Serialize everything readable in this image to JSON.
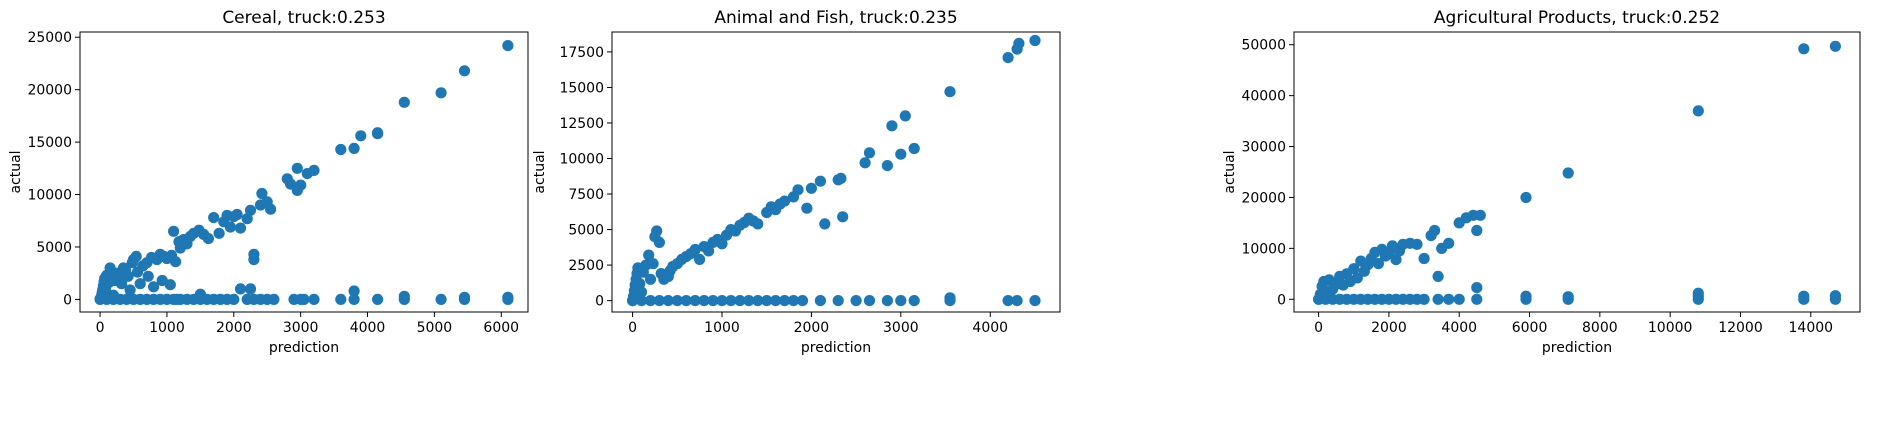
{
  "chart_data": [
    {
      "type": "scatter",
      "title": "Cereal, truck:0.253",
      "xlabel": "prediction",
      "ylabel": "actual",
      "xlim": [
        -300,
        6400
      ],
      "ylim": [
        -1200,
        25500
      ],
      "xticks": [
        0,
        1000,
        2000,
        3000,
        4000,
        5000,
        6000
      ],
      "yticks": [
        0,
        5000,
        10000,
        15000,
        20000,
        25000
      ],
      "color": "#1f77b4",
      "points": [
        [
          0,
          0
        ],
        [
          10,
          120
        ],
        [
          20,
          300
        ],
        [
          30,
          600
        ],
        [
          40,
          900
        ],
        [
          50,
          1300
        ],
        [
          60,
          1700
        ],
        [
          70,
          2000
        ],
        [
          80,
          1000
        ],
        [
          90,
          500
        ],
        [
          100,
          2300
        ],
        [
          120,
          2000
        ],
        [
          130,
          1600
        ],
        [
          150,
          3000
        ],
        [
          170,
          200
        ],
        [
          200,
          400
        ],
        [
          210,
          1800
        ],
        [
          250,
          2500
        ],
        [
          300,
          2200
        ],
        [
          320,
          1500
        ],
        [
          350,
          3000
        ],
        [
          380,
          2800
        ],
        [
          420,
          2200
        ],
        [
          450,
          900
        ],
        [
          480,
          3500
        ],
        [
          500,
          3800
        ],
        [
          540,
          4100
        ],
        [
          560,
          2600
        ],
        [
          600,
          1500
        ],
        [
          640,
          3200
        ],
        [
          700,
          3500
        ],
        [
          720,
          2200
        ],
        [
          770,
          4000
        ],
        [
          800,
          1200
        ],
        [
          850,
          3800
        ],
        [
          900,
          4300
        ],
        [
          930,
          1800
        ],
        [
          950,
          4100
        ],
        [
          1000,
          3900
        ],
        [
          1050,
          1400
        ],
        [
          1070,
          4200
        ],
        [
          1100,
          6500
        ],
        [
          1130,
          3600
        ],
        [
          1180,
          5500
        ],
        [
          1200,
          4900
        ],
        [
          1250,
          5700
        ],
        [
          1300,
          5300
        ],
        [
          1350,
          6000
        ],
        [
          1400,
          6300
        ],
        [
          1480,
          6600
        ],
        [
          1550,
          6200
        ],
        [
          1620,
          5800
        ],
        [
          1700,
          7800
        ],
        [
          1780,
          6300
        ],
        [
          1850,
          7400
        ],
        [
          1900,
          8000
        ],
        [
          1950,
          6900
        ],
        [
          2000,
          7900
        ],
        [
          2050,
          8100
        ],
        [
          2100,
          6800
        ],
        [
          2200,
          7700
        ],
        [
          2250,
          8500
        ],
        [
          2300,
          4300
        ],
        [
          2300,
          3800
        ],
        [
          2400,
          9000
        ],
        [
          2420,
          10100
        ],
        [
          2500,
          9300
        ],
        [
          2550,
          8600
        ],
        [
          2800,
          11500
        ],
        [
          2850,
          11000
        ],
        [
          2950,
          12500
        ],
        [
          2950,
          10400
        ],
        [
          3000,
          10900
        ],
        [
          3100,
          12000
        ],
        [
          3200,
          12300
        ],
        [
          3600,
          14300
        ],
        [
          3800,
          14400
        ],
        [
          3900,
          15600
        ],
        [
          4150,
          15800
        ],
        [
          4150,
          15900
        ],
        [
          4550,
          18800
        ],
        [
          5100,
          19700
        ],
        [
          5450,
          21800
        ],
        [
          6100,
          24200
        ],
        [
          0,
          50
        ],
        [
          100,
          0
        ],
        [
          200,
          0
        ],
        [
          300,
          0
        ],
        [
          400,
          0
        ],
        [
          500,
          0
        ],
        [
          600,
          0
        ],
        [
          700,
          0
        ],
        [
          800,
          0
        ],
        [
          900,
          0
        ],
        [
          1000,
          0
        ],
        [
          1100,
          0
        ],
        [
          1150,
          0
        ],
        [
          1200,
          0
        ],
        [
          1300,
          0
        ],
        [
          1400,
          0
        ],
        [
          1500,
          500
        ],
        [
          1500,
          0
        ],
        [
          1600,
          0
        ],
        [
          1700,
          0
        ],
        [
          1800,
          0
        ],
        [
          1900,
          0
        ],
        [
          2000,
          0
        ],
        [
          2100,
          1000
        ],
        [
          2200,
          0
        ],
        [
          2250,
          1000
        ],
        [
          2300,
          0
        ],
        [
          2400,
          0
        ],
        [
          2500,
          0
        ],
        [
          2600,
          0
        ],
        [
          2900,
          0
        ],
        [
          3000,
          0
        ],
        [
          3050,
          0
        ],
        [
          3200,
          0
        ],
        [
          3600,
          0
        ],
        [
          3800,
          800
        ],
        [
          3800,
          0
        ],
        [
          4150,
          0
        ],
        [
          4550,
          0
        ],
        [
          4550,
          300
        ],
        [
          5100,
          0
        ],
        [
          5450,
          0
        ],
        [
          5450,
          200
        ],
        [
          6100,
          0
        ],
        [
          6100,
          200
        ]
      ]
    },
    {
      "type": "scatter",
      "title": "Animal and Fish, truck:0.235",
      "xlabel": "prediction",
      "ylabel": "actual",
      "xlim": [
        -230,
        4780
      ],
      "ylim": [
        -800,
        18900
      ],
      "xticks": [
        0,
        1000,
        2000,
        3000,
        4000
      ],
      "yticks": [
        0,
        2500,
        5000,
        7500,
        10000,
        12500,
        15000,
        17500
      ],
      "color": "#1f77b4",
      "points": [
        [
          0,
          0
        ],
        [
          10,
          300
        ],
        [
          20,
          700
        ],
        [
          30,
          1100
        ],
        [
          40,
          1500
        ],
        [
          50,
          1900
        ],
        [
          60,
          2300
        ],
        [
          80,
          1200
        ],
        [
          100,
          600
        ],
        [
          120,
          2000
        ],
        [
          150,
          2500
        ],
        [
          180,
          3200
        ],
        [
          200,
          1500
        ],
        [
          230,
          2600
        ],
        [
          250,
          4500
        ],
        [
          270,
          4900
        ],
        [
          300,
          4100
        ],
        [
          320,
          1900
        ],
        [
          350,
          1500
        ],
        [
          400,
          1700
        ],
        [
          420,
          2100
        ],
        [
          450,
          2400
        ],
        [
          500,
          2600
        ],
        [
          550,
          2900
        ],
        [
          600,
          3100
        ],
        [
          650,
          3300
        ],
        [
          700,
          3600
        ],
        [
          750,
          2900
        ],
        [
          800,
          3800
        ],
        [
          850,
          3500
        ],
        [
          900,
          4100
        ],
        [
          950,
          4300
        ],
        [
          1000,
          4000
        ],
        [
          1050,
          4600
        ],
        [
          1100,
          5000
        ],
        [
          1150,
          4900
        ],
        [
          1200,
          5300
        ],
        [
          1250,
          5500
        ],
        [
          1300,
          5800
        ],
        [
          1350,
          5600
        ],
        [
          1400,
          5400
        ],
        [
          1500,
          6200
        ],
        [
          1550,
          6600
        ],
        [
          1600,
          6400
        ],
        [
          1650,
          6800
        ],
        [
          1700,
          7000
        ],
        [
          1800,
          7300
        ],
        [
          1850,
          7800
        ],
        [
          1950,
          6500
        ],
        [
          2000,
          7900
        ],
        [
          2100,
          8400
        ],
        [
          2150,
          5400
        ],
        [
          2300,
          8500
        ],
        [
          2330,
          8600
        ],
        [
          2350,
          5900
        ],
        [
          2600,
          9700
        ],
        [
          2650,
          10400
        ],
        [
          2850,
          9500
        ],
        [
          2900,
          12300
        ],
        [
          3000,
          10300
        ],
        [
          3050,
          13000
        ],
        [
          3150,
          10700
        ],
        [
          3550,
          14700
        ],
        [
          4200,
          17100
        ],
        [
          4300,
          17700
        ],
        [
          4320,
          18100
        ],
        [
          4500,
          18300
        ],
        [
          0,
          0
        ],
        [
          100,
          0
        ],
        [
          200,
          0
        ],
        [
          300,
          0
        ],
        [
          400,
          0
        ],
        [
          500,
          0
        ],
        [
          600,
          0
        ],
        [
          700,
          0
        ],
        [
          800,
          0
        ],
        [
          900,
          0
        ],
        [
          1000,
          0
        ],
        [
          1100,
          0
        ],
        [
          1200,
          0
        ],
        [
          1300,
          0
        ],
        [
          1400,
          0
        ],
        [
          1500,
          0
        ],
        [
          1600,
          0
        ],
        [
          1700,
          0
        ],
        [
          1800,
          0
        ],
        [
          1900,
          0
        ],
        [
          2100,
          0
        ],
        [
          2300,
          0
        ],
        [
          2500,
          0
        ],
        [
          2650,
          0
        ],
        [
          2850,
          0
        ],
        [
          3000,
          0
        ],
        [
          3150,
          0
        ],
        [
          3550,
          0
        ],
        [
          3550,
          200
        ],
        [
          4200,
          0
        ],
        [
          4300,
          0
        ],
        [
          4500,
          0
        ]
      ]
    },
    {
      "type": "scatter",
      "title": "Agricultural Products, truck:0.252",
      "xlabel": "prediction",
      "ylabel": "actual",
      "xlim": [
        -700,
        15400
      ],
      "ylim": [
        -2500,
        52500
      ],
      "xticks": [
        0,
        2000,
        4000,
        6000,
        8000,
        10000,
        12000,
        14000
      ],
      "yticks": [
        0,
        10000,
        20000,
        30000,
        40000,
        50000
      ],
      "color": "#1f77b4",
      "points": [
        [
          0,
          0
        ],
        [
          50,
          1000
        ],
        [
          100,
          2500
        ],
        [
          150,
          3500
        ],
        [
          200,
          1500
        ],
        [
          300,
          3800
        ],
        [
          400,
          2000
        ],
        [
          500,
          3000
        ],
        [
          600,
          4500
        ],
        [
          700,
          2800
        ],
        [
          800,
          5000
        ],
        [
          900,
          3500
        ],
        [
          1000,
          6000
        ],
        [
          1100,
          4200
        ],
        [
          1200,
          7500
        ],
        [
          1300,
          5500
        ],
        [
          1400,
          6800
        ],
        [
          1500,
          8000
        ],
        [
          1600,
          9200
        ],
        [
          1700,
          7000
        ],
        [
          1800,
          9800
        ],
        [
          1900,
          8500
        ],
        [
          2000,
          9000
        ],
        [
          2100,
          10500
        ],
        [
          2200,
          7800
        ],
        [
          2300,
          9500
        ],
        [
          2400,
          10800
        ],
        [
          2600,
          11000
        ],
        [
          2800,
          10800
        ],
        [
          3000,
          8000
        ],
        [
          3200,
          12500
        ],
        [
          3300,
          13500
        ],
        [
          3400,
          4500
        ],
        [
          3500,
          10000
        ],
        [
          3700,
          11000
        ],
        [
          4000,
          15000
        ],
        [
          4200,
          16000
        ],
        [
          4400,
          16500
        ],
        [
          4500,
          13500
        ],
        [
          4600,
          16500
        ],
        [
          5900,
          20000
        ],
        [
          7100,
          24800
        ],
        [
          10800,
          37000
        ],
        [
          13800,
          49200
        ],
        [
          14700,
          49700
        ],
        [
          0,
          0
        ],
        [
          200,
          0
        ],
        [
          400,
          0
        ],
        [
          600,
          0
        ],
        [
          800,
          0
        ],
        [
          1000,
          0
        ],
        [
          1200,
          0
        ],
        [
          1400,
          0
        ],
        [
          1600,
          0
        ],
        [
          1800,
          0
        ],
        [
          2000,
          0
        ],
        [
          2200,
          0
        ],
        [
          2400,
          0
        ],
        [
          2600,
          0
        ],
        [
          2800,
          0
        ],
        [
          3000,
          0
        ],
        [
          3400,
          0
        ],
        [
          3700,
          0
        ],
        [
          4000,
          0
        ],
        [
          4500,
          0
        ],
        [
          4500,
          2300
        ],
        [
          5900,
          0
        ],
        [
          5900,
          600
        ],
        [
          7100,
          0
        ],
        [
          7100,
          500
        ],
        [
          10800,
          0
        ],
        [
          10800,
          600
        ],
        [
          10800,
          1200
        ],
        [
          13800,
          0
        ],
        [
          13800,
          600
        ],
        [
          14700,
          0
        ],
        [
          14700,
          700
        ]
      ]
    }
  ]
}
